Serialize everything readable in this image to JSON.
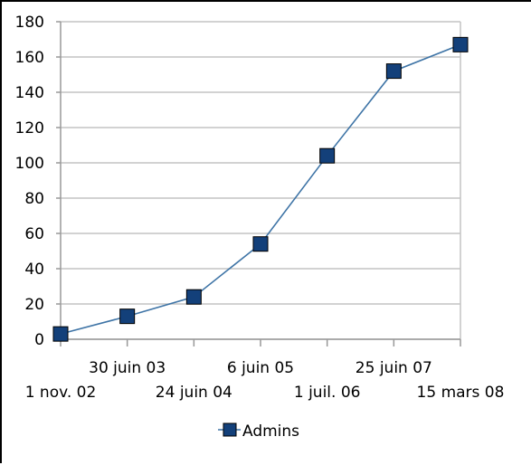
{
  "chart_data": {
    "type": "line",
    "categories": [
      "1 nov. 02",
      "30 juin 03",
      "24 juin 04",
      "6 juin 05",
      "1 juil. 06",
      "25 juin 07",
      "15 mars 08"
    ],
    "series": [
      {
        "name": "Admins",
        "values": [
          3,
          13,
          24,
          54,
          104,
          152,
          167
        ]
      }
    ],
    "ylim": [
      0,
      180
    ],
    "yticks": [
      0,
      20,
      40,
      60,
      80,
      100,
      120,
      140,
      160,
      180
    ],
    "grid": true,
    "legend": "bottom",
    "colors": {
      "line": "#3e74a6",
      "marker_fill": "#13407a",
      "marker_stroke": "#000000",
      "grid": "#c4c4c4",
      "axis": "#999999"
    }
  }
}
